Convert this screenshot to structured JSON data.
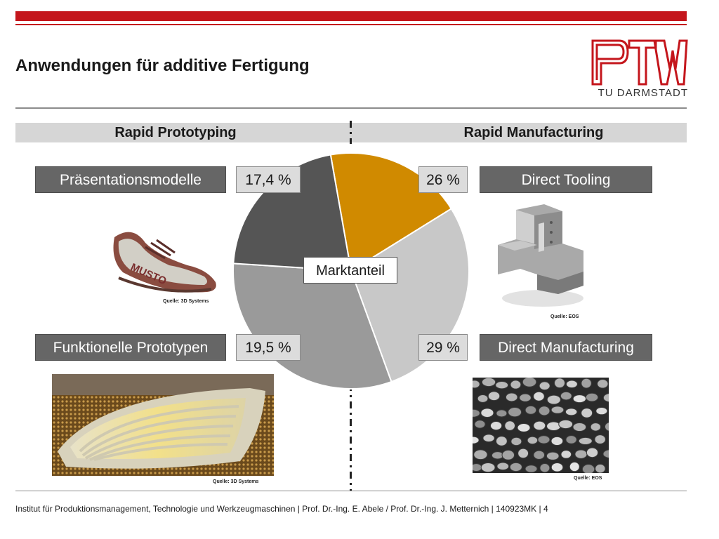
{
  "header": {
    "title": "Anwendungen für additive Fertigung",
    "logo_text": "TU DARMSTADT"
  },
  "sections": {
    "left": "Rapid Prototyping",
    "right": "Rapid Manufacturing"
  },
  "chart_data": {
    "type": "pie",
    "center_label": "Marktanteil",
    "slices": [
      {
        "label": "Präsentationsmodelle",
        "value": 17.4,
        "display": "17,4 %",
        "color": "#d08a00",
        "group": "Rapid Prototyping"
      },
      {
        "label": "Direct Tooling",
        "value": 26,
        "display": "26 %",
        "color": "#c8c8c8",
        "group": "Rapid Manufacturing"
      },
      {
        "label": "Direct Manufacturing",
        "value": 29,
        "display": "29 %",
        "color": "#9a9a9a",
        "group": "Rapid Manufacturing"
      },
      {
        "label": "Funktionelle Prototypen",
        "value": 19.5,
        "display": "19,5 %",
        "color": "#555555",
        "group": "Rapid Prototyping"
      }
    ]
  },
  "images": {
    "shoe": {
      "brand_text": "MUSTO",
      "source": "Quelle: 3D Systems"
    },
    "tool": {
      "source": "Quelle: EOS"
    },
    "grille": {
      "source": "Quelle: 3D Systems"
    },
    "parts": {
      "source": "Quelle: EOS"
    }
  },
  "footer": {
    "text": "Institut für Produktionsmanagement, Technologie und Werkzeugmaschinen | Prof. Dr.-Ing. E. Abele / Prof. Dr.-Ing. J. Metternich | 140923MK | 4"
  },
  "colors": {
    "accent_red": "#c4161c",
    "label_gray": "#666666",
    "orange": "#d08a00"
  }
}
